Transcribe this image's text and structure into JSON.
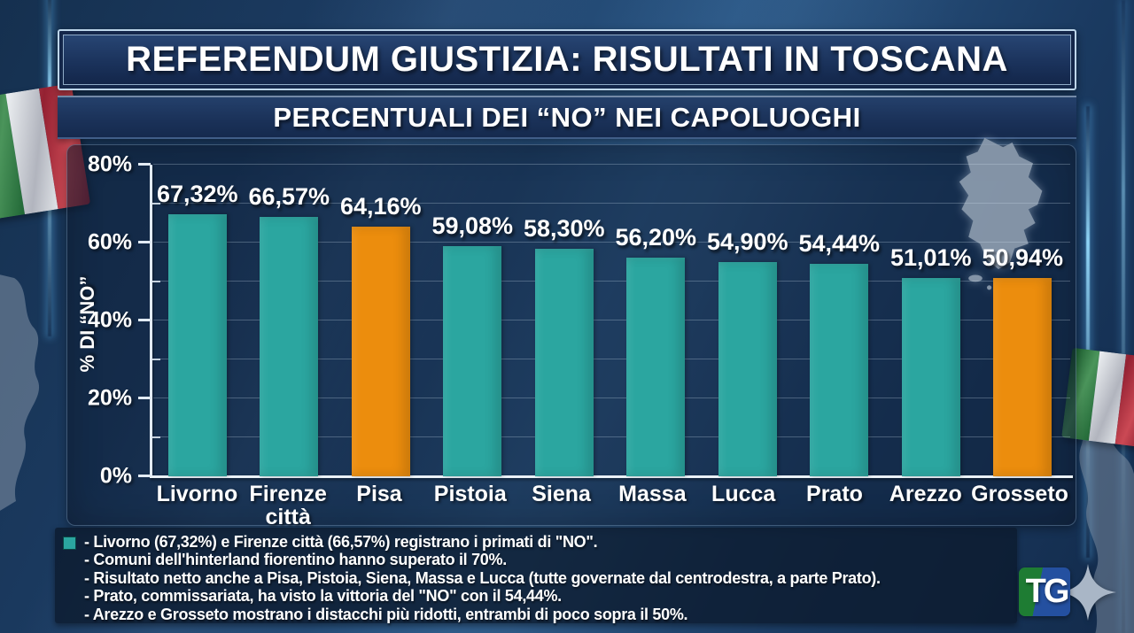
{
  "header": {
    "title": "REFERENDUM GIUSTIZIA: RISULTATI IN TOSCANA",
    "subtitle": "PERCENTUALI DEI “NO” NEI CAPOLUOGHI"
  },
  "chart_data": {
    "type": "bar",
    "title": "PERCENTUALI DEI “NO” NEI CAPOLUOGHI",
    "categories": [
      "Livorno",
      "Firenze città",
      "Pisa",
      "Pistoia",
      "Siena",
      "Massa",
      "Lucca",
      "Prato",
      "Arezzo",
      "Grosseto"
    ],
    "values": [
      67.32,
      66.57,
      64.16,
      59.08,
      58.3,
      56.2,
      54.9,
      54.44,
      51.01,
      50.94
    ],
    "value_labels": [
      "67,32%",
      "66,57%",
      "64,16%",
      "59,08%",
      "58,30%",
      "56,20%",
      "54,90%",
      "54,44%",
      "51,01%",
      "50,94%"
    ],
    "bar_colors": [
      "teal",
      "teal",
      "orange",
      "teal",
      "teal",
      "teal",
      "teal",
      "teal",
      "teal",
      "orange"
    ],
    "ylabel": "% DI “NO”",
    "xlabel": "",
    "ylim": [
      0,
      80
    ],
    "ytick_values": [
      0,
      20,
      40,
      60,
      80
    ],
    "ytick_labels": [
      "0%",
      "20%",
      "40%",
      "60%",
      "80%"
    ],
    "minor_tick_values": [
      10,
      30,
      50,
      70
    ],
    "gridline_step": 10,
    "grid": true,
    "legend": false,
    "palette": {
      "teal": "#2BA6A0",
      "orange": "#EC8D0D"
    }
  },
  "notes": {
    "bullet_color": "#2BA6A0",
    "lines": [
      "- Livorno (67,32%) e Firenze città (66,57%) registrano i primati di \"NO\".",
      "- Comuni dell'hinterland fiorentino hanno superato il 70%.",
      "- Risultato netto anche a Pisa, Pistoia, Siena, Massa e Lucca (tutte governate dal centrodestra, a parte Prato).",
      "- Prato, commissariata, ha visto la vittoria del \"NO\" con il 54,44%.",
      "- Arezzo e Grosseto mostrano i distacchi più ridotti, entrambi di poco sopra il 50%."
    ]
  },
  "logo": {
    "text": "TG"
  },
  "icons": {
    "logo_star": "sparkle-icon",
    "left_flag": "italian-flag-icon",
    "right_flag": "italian-flag-icon",
    "tuscany_map": "tuscany-map-silhouette",
    "italy_map": "italy-map-silhouette",
    "left_coast": "coast-map-silhouette"
  },
  "colors": {
    "background_navy": "#1B3A60",
    "panel_navy": "#16294A",
    "bar_teal": "#2BA6A0",
    "bar_orange": "#EC8D0D",
    "text_white": "#FFFFFF",
    "glow_cyan": "#7FD4FF",
    "flag_green": "#1E7A32",
    "flag_red": "#C22B38",
    "logo_green": "#1E7C33",
    "logo_blue": "#2450A0",
    "star_silver": "#A9B6C6"
  }
}
